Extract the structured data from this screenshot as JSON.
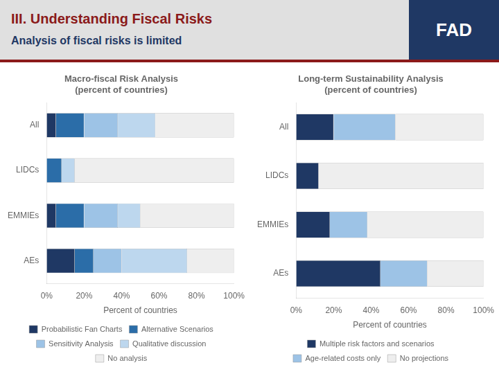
{
  "title": "III. Understanding Fiscal Risks",
  "subtitle": "Analysis of fiscal risks is limited",
  "annotations": [
    "FAD"
  ],
  "chart_data": [
    {
      "type": "bar",
      "orientation": "horizontal",
      "stacked": true,
      "title": "Macro-fiscal Risk Analysis\n(percent of countries)",
      "categories": [
        "AEs",
        "EMMIEs",
        "LIDCs",
        "All"
      ],
      "series": [
        {
          "name": "Probabilistic Fan Charts",
          "color": "#1F3864",
          "values": [
            15,
            5,
            0,
            5
          ]
        },
        {
          "name": "Alternative Scenarios",
          "color": "#2B6DA8",
          "values": [
            10,
            15,
            8,
            15
          ]
        },
        {
          "name": "Sensitivity Analysis",
          "color": "#9DC3E6",
          "values": [
            15,
            18,
            0,
            18
          ]
        },
        {
          "name": "Qualitative discussion",
          "color": "#BDD7EE",
          "values": [
            35,
            12,
            7,
            20
          ]
        },
        {
          "name": "No analysis",
          "color": "#EEEEEE",
          "values": [
            25,
            50,
            85,
            42
          ]
        }
      ],
      "xlabel": "Percent of countries",
      "xlim": [
        0,
        100
      ],
      "xticks": [
        {
          "value": 0,
          "label": "0%"
        },
        {
          "value": 20,
          "label": "20%"
        },
        {
          "value": 40,
          "label": "40%"
        },
        {
          "value": 60,
          "label": "60%"
        },
        {
          "value": 80,
          "label": "80%"
        },
        {
          "value": 100,
          "label": "100%"
        }
      ],
      "grid": false,
      "legend": "bottom"
    },
    {
      "type": "bar",
      "orientation": "horizontal",
      "stacked": true,
      "title": "Long-term Sustainability Analysis\n(percent of countries)",
      "categories": [
        "AEs",
        "EMMIEs",
        "LIDCs",
        "All"
      ],
      "series": [
        {
          "name": "Multiple risk factors and scenarios",
          "color": "#1F3864",
          "values": [
            45,
            18,
            12,
            20
          ]
        },
        {
          "name": "Age-related costs only",
          "color": "#9DC3E6",
          "values": [
            25,
            20,
            0,
            33
          ]
        },
        {
          "name": "No projections",
          "color": "#EEEEEE",
          "values": [
            30,
            62,
            88,
            47
          ]
        }
      ],
      "xlabel": "Percent of countries",
      "xlim": [
        0,
        100
      ],
      "xticks": [
        {
          "value": 0,
          "label": "0%"
        },
        {
          "value": 20,
          "label": "20%"
        },
        {
          "value": 40,
          "label": "40%"
        },
        {
          "value": 60,
          "label": "60%"
        },
        {
          "value": 80,
          "label": "80%"
        },
        {
          "value": 100,
          "label": "100%"
        }
      ],
      "grid": false,
      "legend": "bottom"
    }
  ]
}
